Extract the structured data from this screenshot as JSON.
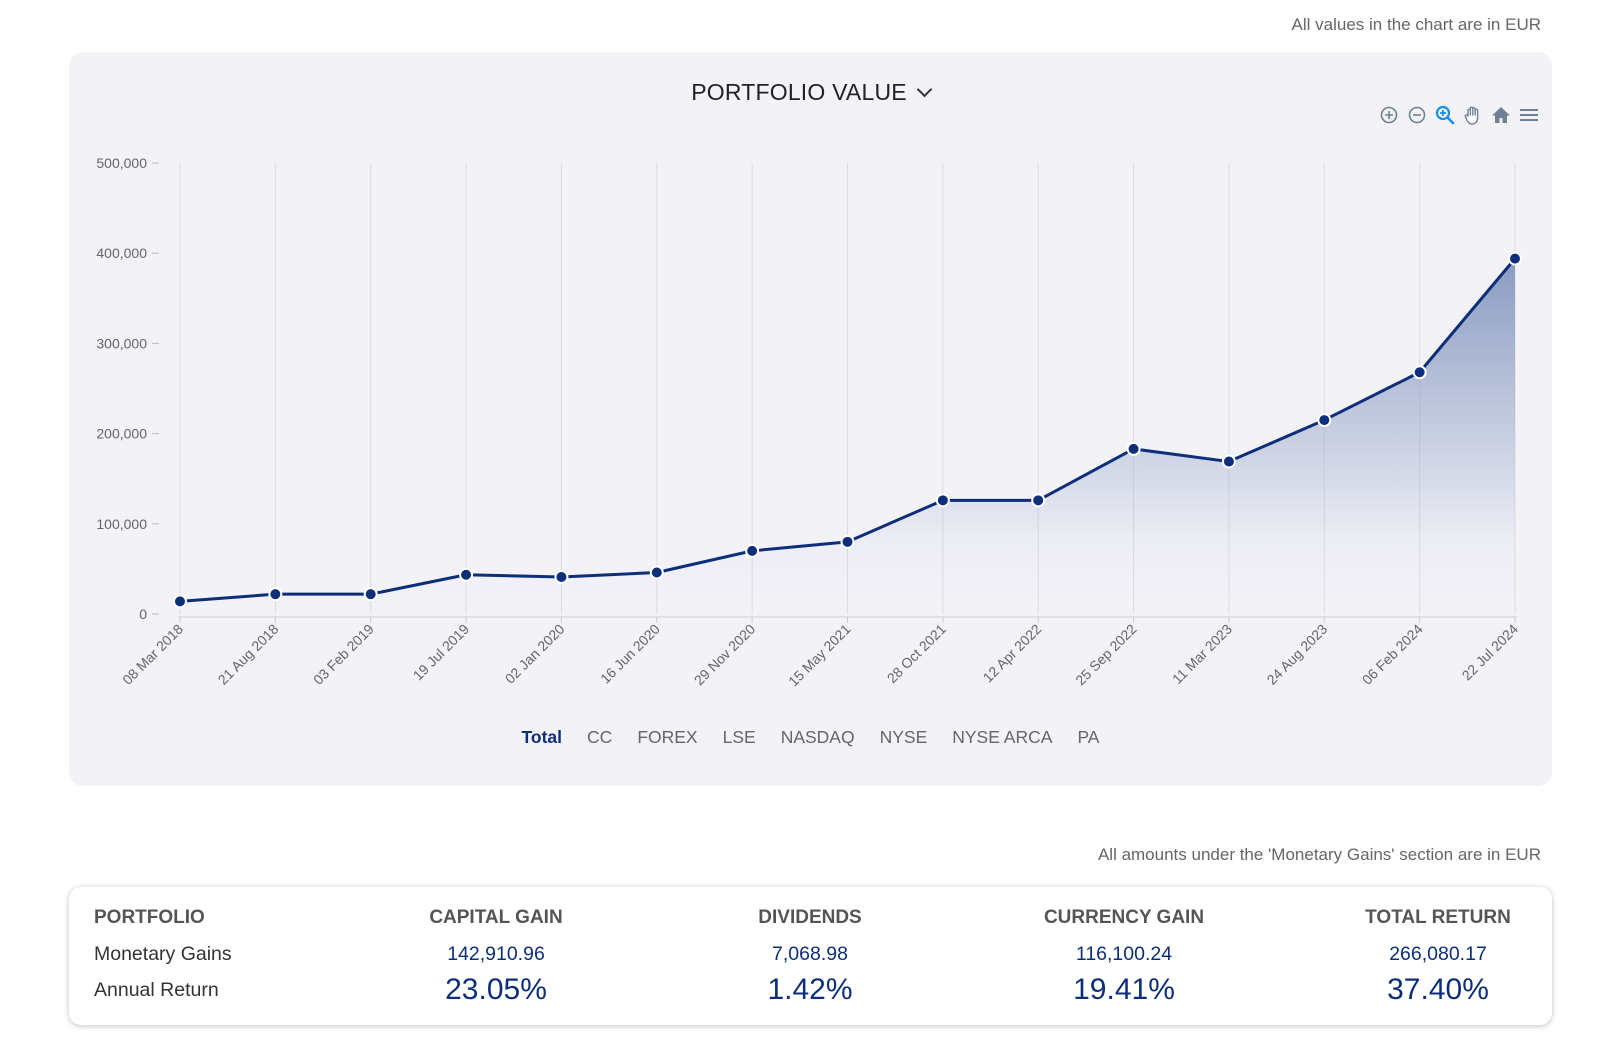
{
  "notes": {
    "chart_currency": "All values in the chart are in EUR",
    "gains_currency": "All amounts under the 'Monetary Gains' section are in EUR"
  },
  "chart_header": {
    "title": "PORTFOLIO VALUE",
    "toolbar": [
      {
        "name": "zoom-in-icon",
        "label": "Zoom in"
      },
      {
        "name": "zoom-out-icon",
        "label": "Zoom out"
      },
      {
        "name": "selection-zoom-icon",
        "label": "Selection zoom"
      },
      {
        "name": "pan-hand-icon",
        "label": "Pan"
      },
      {
        "name": "home-reset-icon",
        "label": "Reset zoom"
      },
      {
        "name": "menu-icon",
        "label": "Menu"
      }
    ]
  },
  "colors": {
    "line": "#0d2f7a",
    "area_top": "#8a9bc2",
    "card_bg": "#f2f2f7",
    "zoom_active": "#1a8fe3",
    "toolbar_icon": "#6e8192"
  },
  "legend": {
    "items": [
      "Total",
      "CC",
      "FOREX",
      "LSE",
      "NASDAQ",
      "NYSE",
      "NYSE ARCA",
      "PA"
    ],
    "active": "Total"
  },
  "chart_data": {
    "type": "area",
    "title": "PORTFOLIO VALUE",
    "xlabel": "",
    "ylabel": "",
    "ylim": [
      0,
      500000
    ],
    "yticks": [
      0,
      100000,
      200000,
      300000,
      400000,
      500000
    ],
    "ytick_labels": [
      "0",
      "100,000",
      "200,000",
      "300,000",
      "400,000",
      "500,000"
    ],
    "grid": "vertical",
    "categories": [
      "08 Mar 2018",
      "21 Aug 2018",
      "03 Feb 2019",
      "19 Jul 2019",
      "02 Jan 2020",
      "16 Jun 2020",
      "29 Nov 2020",
      "15 May 2021",
      "28 Oct 2021",
      "12 Apr 2022",
      "25 Sep 2022",
      "11 Mar 2023",
      "24 Aug 2023",
      "06 Feb 2024",
      "22 Jul 2024"
    ],
    "series": [
      {
        "name": "Total",
        "values": [
          14000,
          22000,
          22000,
          43500,
          41000,
          46000,
          70000,
          80000,
          126000,
          126000,
          183000,
          169000,
          215000,
          268000,
          394000
        ]
      }
    ],
    "legend_position": "bottom"
  },
  "summary": {
    "headers": [
      "PORTFOLIO",
      "CAPITAL GAIN",
      "DIVIDENDS",
      "CURRENCY GAIN",
      "TOTAL RETURN"
    ],
    "monetary_gains": {
      "label": "Monetary Gains",
      "values": [
        "142,910.96",
        "7,068.98",
        "116,100.24",
        "266,080.17"
      ]
    },
    "annual_return": {
      "label": "Annual Return",
      "values": [
        "23.05%",
        "1.42%",
        "19.41%",
        "37.40%"
      ]
    }
  }
}
